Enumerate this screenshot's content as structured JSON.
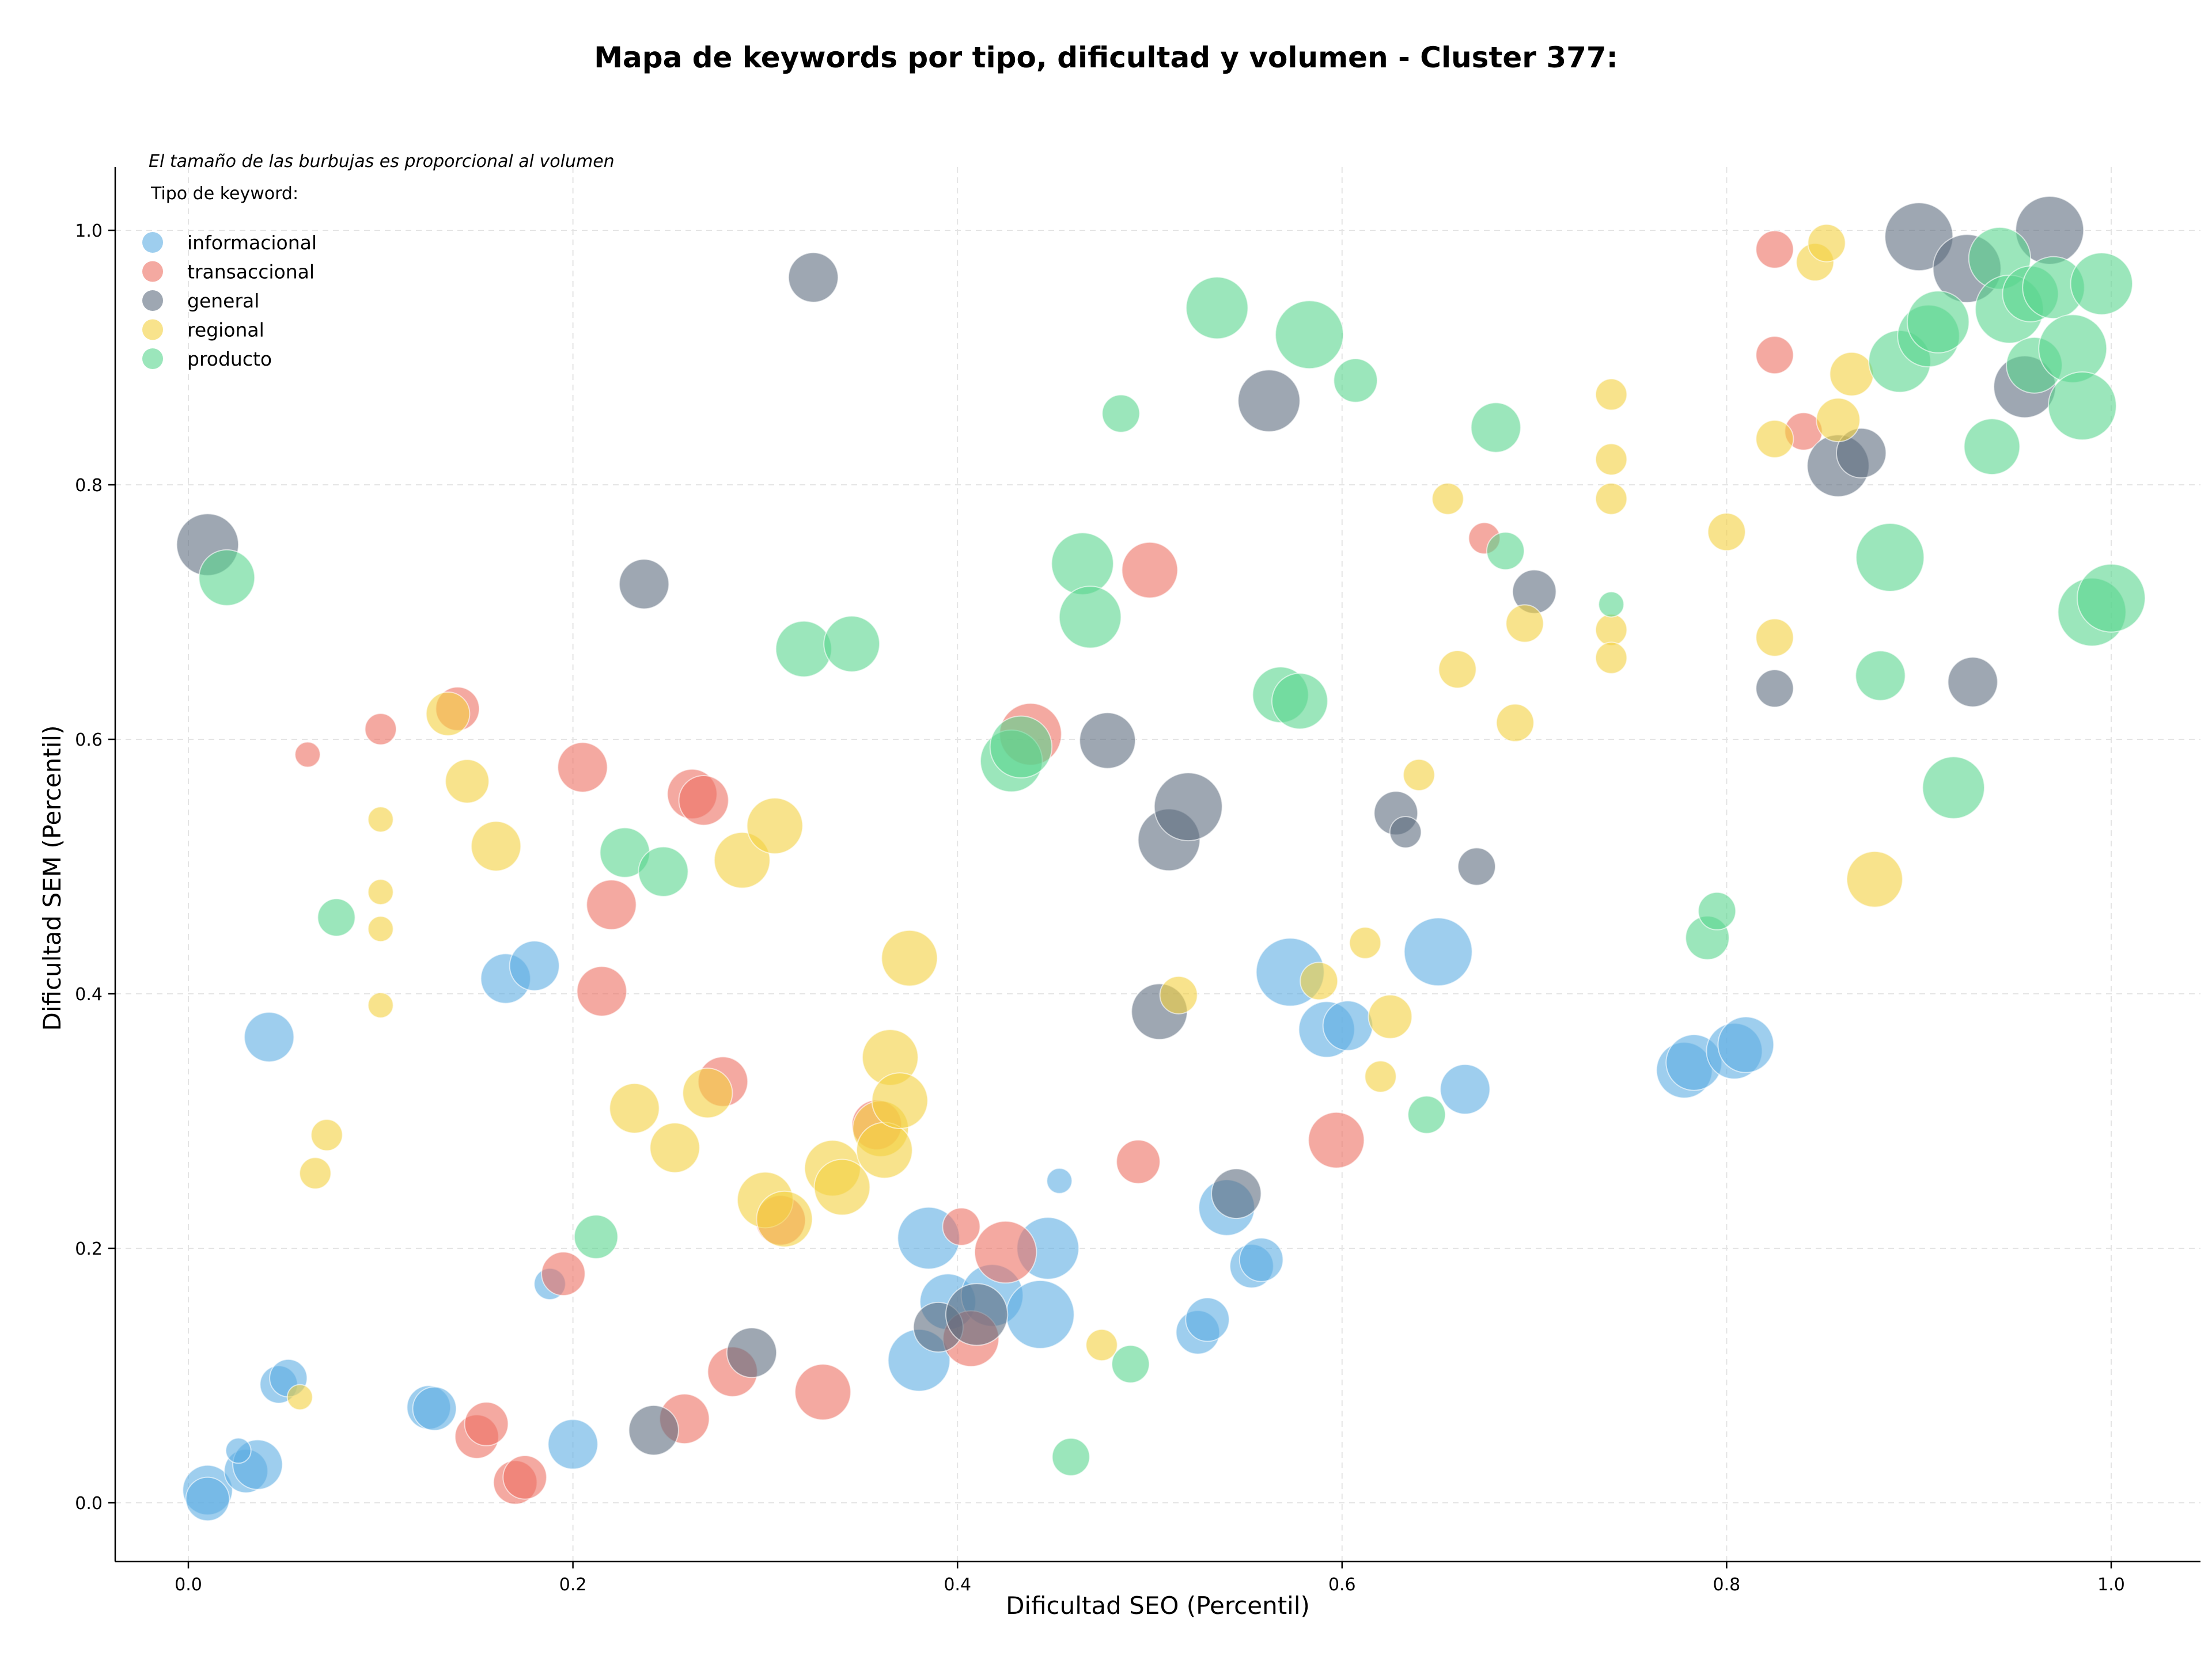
{
  "chart_data": {
    "type": "scatter",
    "title": "Mapa de keywords por tipo, dificultad y volumen - Cluster 377:",
    "xlabel": "Dificultad SEO (Percentil)",
    "ylabel": "Dificultad SEM (Percentil)",
    "note": "El tamaño de las burbujas es proporcional al volumen",
    "legend_title": "Tipo de keyword:",
    "legend_position": "top-left",
    "grid": true,
    "xlim": [
      -0.04,
      1.05
    ],
    "ylim": [
      -0.045,
      1.05
    ],
    "xticks": [
      "0.0",
      "0.2",
      "0.4",
      "0.6",
      "0.8",
      "1.0"
    ],
    "yticks": [
      "0.0",
      "0.2",
      "0.4",
      "0.6",
      "0.8",
      "1.0"
    ],
    "series": [
      {
        "name": "informacional",
        "color": "#5dade2",
        "points": [
          [
            0.01,
            0.01,
            7
          ],
          [
            0.01,
            0.003,
            6
          ],
          [
            0.03,
            0.025,
            6
          ],
          [
            0.036,
            0.03,
            7
          ],
          [
            0.026,
            0.041,
            3
          ],
          [
            0.047,
            0.093,
            5
          ],
          [
            0.052,
            0.098,
            5
          ],
          [
            0.042,
            0.366,
            7
          ],
          [
            0.125,
            0.075,
            6
          ],
          [
            0.128,
            0.074,
            6
          ],
          [
            0.165,
            0.412,
            7
          ],
          [
            0.18,
            0.422,
            7
          ],
          [
            0.188,
            0.172,
            4
          ],
          [
            0.2,
            0.046,
            7
          ],
          [
            0.38,
            0.112,
            9
          ],
          [
            0.385,
            0.208,
            9
          ],
          [
            0.395,
            0.158,
            8
          ],
          [
            0.418,
            0.163,
            9
          ],
          [
            0.443,
            0.148,
            10
          ],
          [
            0.447,
            0.2,
            9
          ],
          [
            0.453,
            0.253,
            3
          ],
          [
            0.525,
            0.134,
            6
          ],
          [
            0.53,
            0.144,
            6
          ],
          [
            0.54,
            0.232,
            8
          ],
          [
            0.553,
            0.186,
            6
          ],
          [
            0.558,
            0.191,
            6
          ],
          [
            0.573,
            0.417,
            10
          ],
          [
            0.592,
            0.372,
            8
          ],
          [
            0.603,
            0.375,
            7
          ],
          [
            0.65,
            0.433,
            10
          ],
          [
            0.664,
            0.325,
            7
          ],
          [
            0.778,
            0.34,
            8
          ],
          [
            0.783,
            0.346,
            8
          ],
          [
            0.804,
            0.355,
            8
          ],
          [
            0.81,
            0.36,
            8
          ]
        ]
      },
      {
        "name": "transaccional",
        "color": "#ec7063",
        "points": [
          [
            0.062,
            0.588,
            3
          ],
          [
            0.1,
            0.608,
            4
          ],
          [
            0.14,
            0.624,
            6
          ],
          [
            0.15,
            0.052,
            6
          ],
          [
            0.155,
            0.062,
            6
          ],
          [
            0.17,
            0.016,
            6
          ],
          [
            0.175,
            0.02,
            6
          ],
          [
            0.195,
            0.18,
            6
          ],
          [
            0.205,
            0.578,
            7
          ],
          [
            0.215,
            0.402,
            7
          ],
          [
            0.22,
            0.47,
            7
          ],
          [
            0.258,
            0.066,
            7
          ],
          [
            0.262,
            0.557,
            7
          ],
          [
            0.268,
            0.552,
            7
          ],
          [
            0.283,
            0.103,
            7
          ],
          [
            0.278,
            0.331,
            7
          ],
          [
            0.308,
            0.222,
            7
          ],
          [
            0.33,
            0.087,
            8
          ],
          [
            0.358,
            0.297,
            7
          ],
          [
            0.402,
            0.217,
            5
          ],
          [
            0.407,
            0.129,
            8
          ],
          [
            0.425,
            0.197,
            9
          ],
          [
            0.438,
            0.604,
            9
          ],
          [
            0.494,
            0.268,
            6
          ],
          [
            0.5,
            0.733,
            8
          ],
          [
            0.597,
            0.285,
            8
          ],
          [
            0.674,
            0.758,
            4
          ],
          [
            0.825,
            0.985,
            5
          ],
          [
            0.825,
            0.902,
            5
          ],
          [
            0.84,
            0.842,
            5
          ]
        ]
      },
      {
        "name": "general",
        "color": "#5d6d7e",
        "points": [
          [
            0.01,
            0.753,
            9
          ],
          [
            0.237,
            0.722,
            7
          ],
          [
            0.242,
            0.057,
            7
          ],
          [
            0.293,
            0.118,
            7
          ],
          [
            0.325,
            0.963,
            7
          ],
          [
            0.39,
            0.138,
            7
          ],
          [
            0.41,
            0.148,
            9
          ],
          [
            0.478,
            0.599,
            8
          ],
          [
            0.505,
            0.386,
            8
          ],
          [
            0.51,
            0.521,
            9
          ],
          [
            0.52,
            0.547,
            10
          ],
          [
            0.545,
            0.243,
            7
          ],
          [
            0.562,
            0.866,
            9
          ],
          [
            0.628,
            0.542,
            6
          ],
          [
            0.633,
            0.527,
            4
          ],
          [
            0.67,
            0.5,
            5
          ],
          [
            0.7,
            0.716,
            6
          ],
          [
            0.825,
            0.64,
            5
          ],
          [
            0.858,
            0.815,
            9
          ],
          [
            0.87,
            0.825,
            7
          ],
          [
            0.9,
            0.995,
            10
          ],
          [
            0.925,
            0.97,
            10
          ],
          [
            0.928,
            0.645,
            7
          ],
          [
            0.955,
            0.877,
            9
          ],
          [
            0.968,
            1.0,
            10
          ]
        ]
      },
      {
        "name": "regional",
        "color": "#f4d03f",
        "points": [
          [
            0.058,
            0.083,
            3
          ],
          [
            0.066,
            0.259,
            4
          ],
          [
            0.072,
            0.289,
            4
          ],
          [
            0.1,
            0.391,
            3
          ],
          [
            0.1,
            0.451,
            3
          ],
          [
            0.1,
            0.48,
            3
          ],
          [
            0.1,
            0.537,
            3
          ],
          [
            0.135,
            0.62,
            6
          ],
          [
            0.145,
            0.567,
            6
          ],
          [
            0.16,
            0.516,
            7
          ],
          [
            0.232,
            0.31,
            7
          ],
          [
            0.253,
            0.279,
            7
          ],
          [
            0.27,
            0.322,
            7
          ],
          [
            0.288,
            0.505,
            8
          ],
          [
            0.305,
            0.532,
            8
          ],
          [
            0.3,
            0.238,
            8
          ],
          [
            0.31,
            0.223,
            8
          ],
          [
            0.335,
            0.263,
            8
          ],
          [
            0.34,
            0.248,
            8
          ],
          [
            0.36,
            0.294,
            8
          ],
          [
            0.362,
            0.277,
            8
          ],
          [
            0.365,
            0.35,
            8
          ],
          [
            0.37,
            0.316,
            8
          ],
          [
            0.375,
            0.428,
            8
          ],
          [
            0.475,
            0.124,
            4
          ],
          [
            0.515,
            0.399,
            5
          ],
          [
            0.588,
            0.41,
            5
          ],
          [
            0.612,
            0.44,
            4
          ],
          [
            0.62,
            0.335,
            4
          ],
          [
            0.625,
            0.382,
            6
          ],
          [
            0.64,
            0.572,
            4
          ],
          [
            0.655,
            0.789,
            4
          ],
          [
            0.66,
            0.655,
            5
          ],
          [
            0.69,
            0.613,
            5
          ],
          [
            0.695,
            0.691,
            5
          ],
          [
            0.74,
            0.871,
            4
          ],
          [
            0.74,
            0.82,
            4
          ],
          [
            0.74,
            0.789,
            4
          ],
          [
            0.74,
            0.686,
            4
          ],
          [
            0.74,
            0.664,
            4
          ],
          [
            0.8,
            0.763,
            5
          ],
          [
            0.825,
            0.68,
            5
          ],
          [
            0.825,
            0.836,
            5
          ],
          [
            0.846,
            0.975,
            5
          ],
          [
            0.852,
            0.99,
            5
          ],
          [
            0.858,
            0.851,
            6
          ],
          [
            0.865,
            0.887,
            6
          ],
          [
            0.877,
            0.49,
            8
          ]
        ]
      },
      {
        "name": "producto",
        "color": "#58d68d",
        "points": [
          [
            0.02,
            0.727,
            8
          ],
          [
            0.077,
            0.46,
            5
          ],
          [
            0.212,
            0.209,
            6
          ],
          [
            0.227,
            0.511,
            7
          ],
          [
            0.247,
            0.496,
            7
          ],
          [
            0.32,
            0.671,
            8
          ],
          [
            0.345,
            0.675,
            8
          ],
          [
            0.428,
            0.583,
            9
          ],
          [
            0.433,
            0.594,
            9
          ],
          [
            0.459,
            0.036,
            5
          ],
          [
            0.465,
            0.738,
            9
          ],
          [
            0.469,
            0.696,
            9
          ],
          [
            0.485,
            0.856,
            5
          ],
          [
            0.49,
            0.109,
            5
          ],
          [
            0.535,
            0.939,
            9
          ],
          [
            0.568,
            0.635,
            8
          ],
          [
            0.578,
            0.63,
            8
          ],
          [
            0.583,
            0.918,
            10
          ],
          [
            0.607,
            0.882,
            6
          ],
          [
            0.644,
            0.305,
            5
          ],
          [
            0.68,
            0.845,
            7
          ],
          [
            0.685,
            0.748,
            5
          ],
          [
            0.74,
            0.706,
            3
          ],
          [
            0.79,
            0.444,
            6
          ],
          [
            0.795,
            0.465,
            5
          ],
          [
            0.88,
            0.65,
            7
          ],
          [
            0.885,
            0.743,
            10
          ],
          [
            0.89,
            0.897,
            9
          ],
          [
            0.905,
            0.917,
            9
          ],
          [
            0.91,
            0.928,
            9
          ],
          [
            0.918,
            0.562,
            9
          ],
          [
            0.938,
            0.83,
            8
          ],
          [
            0.942,
            0.978,
            9
          ],
          [
            0.947,
            0.938,
            10
          ],
          [
            0.958,
            0.95,
            8
          ],
          [
            0.96,
            0.894,
            8
          ],
          [
            0.97,
            0.955,
            9
          ],
          [
            0.98,
            0.907,
            10
          ],
          [
            0.985,
            0.862,
            10
          ],
          [
            0.99,
            0.7,
            10
          ],
          [
            0.995,
            0.958,
            9
          ],
          [
            1.0,
            0.711,
            10
          ]
        ]
      }
    ]
  }
}
